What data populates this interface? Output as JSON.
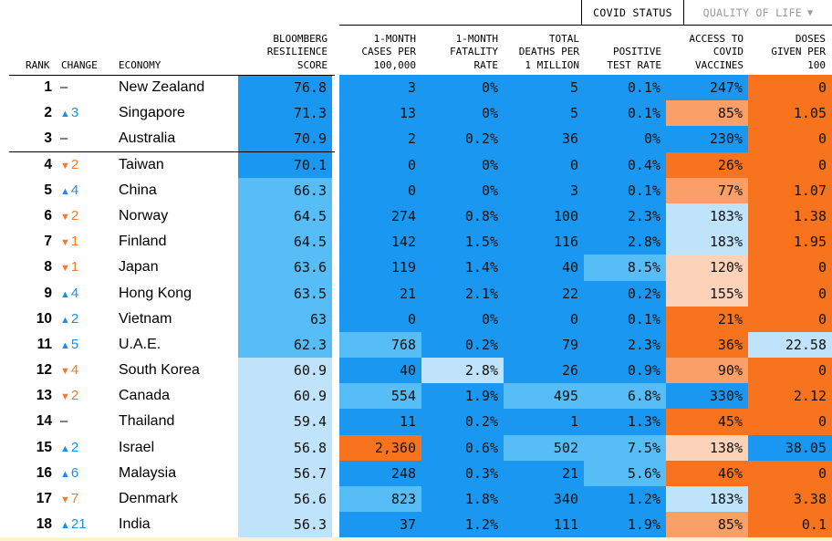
{
  "tabs": {
    "covid_status": "COVID STATUS",
    "quality_of_life": "QUALITY OF LIFE",
    "dropdown_icon": "triangle-down"
  },
  "headers": {
    "rank": "RANK",
    "change": "CHANGE",
    "economy": "ECONOMY",
    "score": "BLOOMBERG\nRESILIENCE\nSCORE",
    "cases": "1-MONTH\nCASES PER\n100,000",
    "fatality": "1-MONTH\nFATALITY\nRATE",
    "deaths": "TOTAL\nDEATHS PER\n1 MILLION",
    "positive": "POSITIVE\nTEST RATE",
    "access": "ACCESS TO\nCOVID\nVACCINES",
    "doses": "DOSES\nGIVEN PER\n100"
  },
  "colors": {
    "deep_blue": "#1a97f0",
    "mid_blue": "#56bdf6",
    "light_blue": "#bfe3fb",
    "light_orange": "#fcd3b9",
    "mid_orange": "#fb9f68",
    "deep_orange": "#f7731e",
    "arrow_up": "#1f8ee8",
    "arrow_down": "#f07b2a"
  },
  "rows": [
    {
      "rank": "1",
      "change_dir": "none",
      "change": "–",
      "economy": "New Zealand",
      "score": "76.8",
      "cases": "3",
      "fatality": "0%",
      "deaths": "5",
      "positive": "0.1%",
      "access": "247%",
      "doses": "0",
      "colors": [
        "deep_blue",
        "deep_blue",
        "deep_blue",
        "deep_blue",
        "deep_blue",
        "deep_blue",
        "deep_orange"
      ]
    },
    {
      "rank": "2",
      "change_dir": "up",
      "change": "3",
      "economy": "Singapore",
      "score": "71.3",
      "cases": "13",
      "fatality": "0%",
      "deaths": "5",
      "positive": "0.1%",
      "access": "85%",
      "doses": "1.05",
      "colors": [
        "deep_blue",
        "deep_blue",
        "deep_blue",
        "deep_blue",
        "deep_blue",
        "mid_orange",
        "deep_orange"
      ]
    },
    {
      "rank": "3",
      "change_dir": "none",
      "change": "–",
      "economy": "Australia",
      "score": "70.9",
      "cases": "2",
      "fatality": "0.2%",
      "deaths": "36",
      "positive": "0%",
      "access": "230%",
      "doses": "0",
      "colors": [
        "deep_blue",
        "deep_blue",
        "deep_blue",
        "deep_blue",
        "deep_blue",
        "deep_blue",
        "deep_orange"
      ]
    },
    {
      "rank": "4",
      "change_dir": "down",
      "change": "2",
      "economy": "Taiwan",
      "score": "70.1",
      "cases": "0",
      "fatality": "0%",
      "deaths": "0",
      "positive": "0.4%",
      "access": "26%",
      "doses": "0",
      "colors": [
        "deep_blue",
        "deep_blue",
        "deep_blue",
        "deep_blue",
        "deep_blue",
        "deep_orange",
        "deep_orange"
      ]
    },
    {
      "rank": "5",
      "change_dir": "up",
      "change": "4",
      "economy": "China",
      "score": "66.3",
      "cases": "0",
      "fatality": "0%",
      "deaths": "3",
      "positive": "0.1%",
      "access": "77%",
      "doses": "1.07",
      "colors": [
        "mid_blue",
        "deep_blue",
        "deep_blue",
        "deep_blue",
        "deep_blue",
        "mid_orange",
        "deep_orange"
      ]
    },
    {
      "rank": "6",
      "change_dir": "down",
      "change": "2",
      "economy": "Norway",
      "score": "64.5",
      "cases": "274",
      "fatality": "0.8%",
      "deaths": "100",
      "positive": "2.3%",
      "access": "183%",
      "doses": "1.38",
      "colors": [
        "mid_blue",
        "deep_blue",
        "deep_blue",
        "deep_blue",
        "deep_blue",
        "light_blue",
        "deep_orange"
      ]
    },
    {
      "rank": "7",
      "change_dir": "down",
      "change": "1",
      "economy": "Finland",
      "score": "64.5",
      "cases": "142",
      "fatality": "1.5%",
      "deaths": "116",
      "positive": "2.8%",
      "access": "183%",
      "doses": "1.95",
      "colors": [
        "mid_blue",
        "deep_blue",
        "deep_blue",
        "deep_blue",
        "deep_blue",
        "light_blue",
        "deep_orange"
      ]
    },
    {
      "rank": "8",
      "change_dir": "down",
      "change": "1",
      "economy": "Japan",
      "score": "63.6",
      "cases": "119",
      "fatality": "1.4%",
      "deaths": "40",
      "positive": "8.5%",
      "access": "120%",
      "doses": "0",
      "colors": [
        "mid_blue",
        "deep_blue",
        "deep_blue",
        "deep_blue",
        "mid_blue",
        "light_orange",
        "deep_orange"
      ]
    },
    {
      "rank": "9",
      "change_dir": "up",
      "change": "4",
      "economy": "Hong Kong",
      "score": "63.5",
      "cases": "21",
      "fatality": "2.1%",
      "deaths": "22",
      "positive": "0.2%",
      "access": "155%",
      "doses": "0",
      "colors": [
        "mid_blue",
        "deep_blue",
        "deep_blue",
        "deep_blue",
        "deep_blue",
        "light_orange",
        "deep_orange"
      ]
    },
    {
      "rank": "10",
      "change_dir": "up",
      "change": "2",
      "economy": "Vietnam",
      "score": "63",
      "cases": "0",
      "fatality": "0%",
      "deaths": "0",
      "positive": "0.1%",
      "access": "21%",
      "doses": "0",
      "colors": [
        "mid_blue",
        "deep_blue",
        "deep_blue",
        "deep_blue",
        "deep_blue",
        "deep_orange",
        "deep_orange"
      ]
    },
    {
      "rank": "11",
      "change_dir": "up",
      "change": "5",
      "economy": "U.A.E.",
      "score": "62.3",
      "cases": "768",
      "fatality": "0.2%",
      "deaths": "79",
      "positive": "2.3%",
      "access": "36%",
      "doses": "22.58",
      "colors": [
        "mid_blue",
        "mid_blue",
        "deep_blue",
        "deep_blue",
        "deep_blue",
        "deep_orange",
        "light_blue"
      ]
    },
    {
      "rank": "12",
      "change_dir": "down",
      "change": "4",
      "economy": "South Korea",
      "score": "60.9",
      "cases": "40",
      "fatality": "2.8%",
      "deaths": "26",
      "positive": "0.9%",
      "access": "90%",
      "doses": "0",
      "colors": [
        "light_blue",
        "deep_blue",
        "light_blue",
        "deep_blue",
        "deep_blue",
        "mid_orange",
        "deep_orange"
      ]
    },
    {
      "rank": "13",
      "change_dir": "down",
      "change": "2",
      "economy": "Canada",
      "score": "60.9",
      "cases": "554",
      "fatality": "1.9%",
      "deaths": "495",
      "positive": "6.8%",
      "access": "330%",
      "doses": "2.12",
      "colors": [
        "light_blue",
        "mid_blue",
        "deep_blue",
        "mid_blue",
        "mid_blue",
        "deep_blue",
        "deep_orange"
      ]
    },
    {
      "rank": "14",
      "change_dir": "none",
      "change": "–",
      "economy": "Thailand",
      "score": "59.4",
      "cases": "11",
      "fatality": "0.2%",
      "deaths": "1",
      "positive": "1.3%",
      "access": "45%",
      "doses": "0",
      "colors": [
        "light_blue",
        "deep_blue",
        "deep_blue",
        "deep_blue",
        "deep_blue",
        "deep_orange",
        "deep_orange"
      ]
    },
    {
      "rank": "15",
      "change_dir": "up",
      "change": "2",
      "economy": "Israel",
      "score": "56.8",
      "cases": "2,360",
      "fatality": "0.6%",
      "deaths": "502",
      "positive": "7.5%",
      "access": "138%",
      "doses": "38.05",
      "colors": [
        "light_blue",
        "deep_orange",
        "deep_blue",
        "mid_blue",
        "mid_blue",
        "light_orange",
        "deep_blue"
      ]
    },
    {
      "rank": "16",
      "change_dir": "up",
      "change": "6",
      "economy": "Malaysia",
      "score": "56.7",
      "cases": "248",
      "fatality": "0.3%",
      "deaths": "21",
      "positive": "5.6%",
      "access": "46%",
      "doses": "0",
      "colors": [
        "light_blue",
        "deep_blue",
        "deep_blue",
        "deep_blue",
        "mid_blue",
        "deep_orange",
        "deep_orange"
      ]
    },
    {
      "rank": "17",
      "change_dir": "down",
      "change": "7",
      "economy": "Denmark",
      "score": "56.6",
      "cases": "823",
      "fatality": "1.8%",
      "deaths": "340",
      "positive": "1.2%",
      "access": "183%",
      "doses": "3.38",
      "colors": [
        "light_blue",
        "mid_blue",
        "deep_blue",
        "deep_blue",
        "deep_blue",
        "light_blue",
        "deep_orange"
      ]
    },
    {
      "rank": "18",
      "change_dir": "up",
      "change": "21",
      "economy": "India",
      "score": "56.3",
      "cases": "37",
      "fatality": "1.2%",
      "deaths": "111",
      "positive": "1.9%",
      "access": "85%",
      "doses": "0.1",
      "colors": [
        "light_blue",
        "deep_blue",
        "deep_blue",
        "deep_blue",
        "deep_blue",
        "mid_orange",
        "deep_orange"
      ]
    }
  ]
}
